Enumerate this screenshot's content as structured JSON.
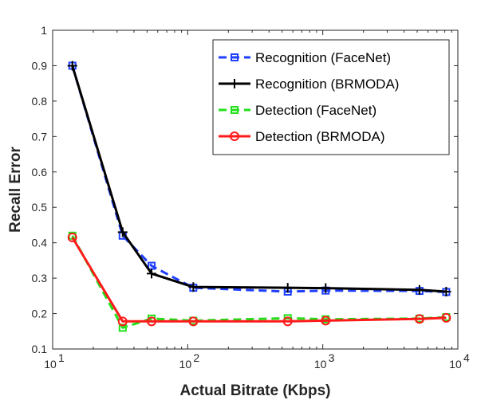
{
  "chart_data": {
    "type": "line",
    "title": "",
    "xlabel": "Actual Bitrate (Kbps)",
    "ylabel": "Recall Error",
    "x_scale": "log",
    "xlim": [
      10,
      10000
    ],
    "ylim": [
      0.1,
      1
    ],
    "x_ticks": [
      {
        "value": 10,
        "base": "10",
        "exp": "1"
      },
      {
        "value": 100,
        "base": "10",
        "exp": "2"
      },
      {
        "value": 1000,
        "base": "10",
        "exp": "3"
      },
      {
        "value": 10000,
        "base": "10",
        "exp": "4"
      }
    ],
    "y_ticks": [
      {
        "value": 0.1,
        "label": "0.1"
      },
      {
        "value": 0.2,
        "label": "0.2"
      },
      {
        "value": 0.3,
        "label": "0.3"
      },
      {
        "value": 0.4,
        "label": "0.4"
      },
      {
        "value": 0.5,
        "label": "0.5"
      },
      {
        "value": 0.6,
        "label": "0.6"
      },
      {
        "value": 0.7,
        "label": "0.7"
      },
      {
        "value": 0.8,
        "label": "0.8"
      },
      {
        "value": 0.9,
        "label": "0.9"
      },
      {
        "value": 1,
        "label": "1"
      }
    ],
    "grid": false,
    "legend_position": "top-right",
    "series": [
      {
        "name": "Recognition (FaceNet)",
        "color": "#1f3fff",
        "line_style": "dashed",
        "marker": "square",
        "points": [
          {
            "x": 14,
            "y": 0.9
          },
          {
            "x": 33,
            "y": 0.42
          },
          {
            "x": 54,
            "y": 0.335
          },
          {
            "x": 110,
            "y": 0.273
          },
          {
            "x": 550,
            "y": 0.262
          },
          {
            "x": 1050,
            "y": 0.265
          },
          {
            "x": 5200,
            "y": 0.264
          },
          {
            "x": 8200,
            "y": 0.261
          }
        ]
      },
      {
        "name": "Recognition (BRMODA)",
        "color": "#000000",
        "line_style": "solid",
        "marker": "plus",
        "points": [
          {
            "x": 14,
            "y": 0.9
          },
          {
            "x": 33,
            "y": 0.43
          },
          {
            "x": 54,
            "y": 0.313
          },
          {
            "x": 110,
            "y": 0.275
          },
          {
            "x": 550,
            "y": 0.273
          },
          {
            "x": 1050,
            "y": 0.272
          },
          {
            "x": 5200,
            "y": 0.267
          },
          {
            "x": 8200,
            "y": 0.262
          }
        ]
      },
      {
        "name": "Detection (FaceNet)",
        "color": "#22e01a",
        "line_style": "dashed",
        "marker": "square",
        "points": [
          {
            "x": 14,
            "y": 0.42
          },
          {
            "x": 33,
            "y": 0.16
          },
          {
            "x": 54,
            "y": 0.186
          },
          {
            "x": 110,
            "y": 0.18
          },
          {
            "x": 550,
            "y": 0.187
          },
          {
            "x": 1050,
            "y": 0.184
          },
          {
            "x": 5200,
            "y": 0.186
          },
          {
            "x": 8200,
            "y": 0.19
          }
        ]
      },
      {
        "name": "Detection (BRMODA)",
        "color": "#ff1a1a",
        "line_style": "solid",
        "marker": "circle",
        "points": [
          {
            "x": 14,
            "y": 0.415
          },
          {
            "x": 33,
            "y": 0.178
          },
          {
            "x": 54,
            "y": 0.178
          },
          {
            "x": 110,
            "y": 0.178
          },
          {
            "x": 550,
            "y": 0.178
          },
          {
            "x": 1050,
            "y": 0.18
          },
          {
            "x": 5200,
            "y": 0.185
          },
          {
            "x": 8200,
            "y": 0.188
          }
        ]
      }
    ]
  }
}
